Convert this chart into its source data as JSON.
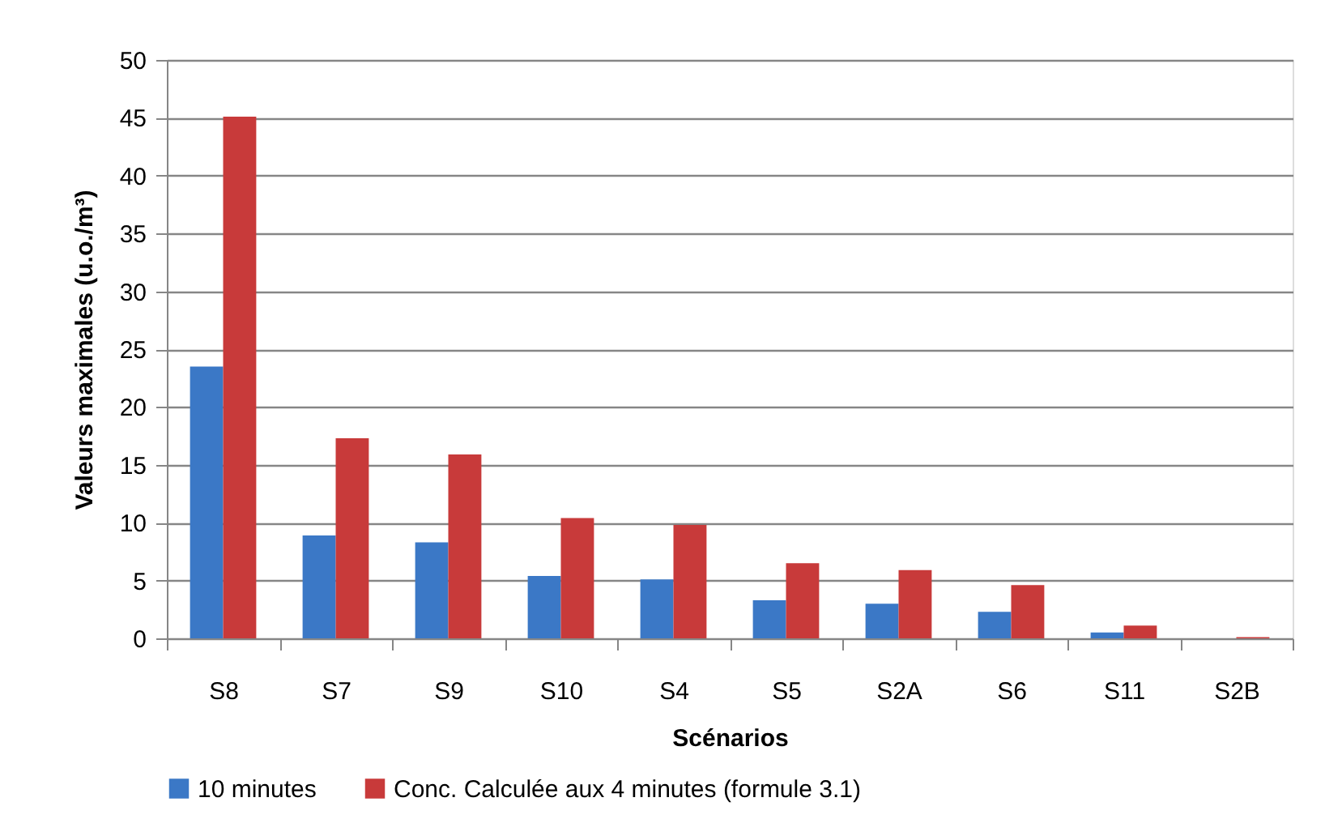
{
  "chart_data": {
    "type": "bar",
    "xlabel": "Scénarios",
    "ylabel": "Valeurs maximales (u.o./m³)",
    "categories": [
      "S8",
      "S7",
      "S9",
      "S10",
      "S4",
      "S5",
      "S2A",
      "S6",
      "S11",
      "S2B"
    ],
    "series": [
      {
        "name": "10 minutes",
        "color": "#3b78c6",
        "values": [
          23.5,
          8.9,
          8.3,
          5.4,
          5.1,
          3.3,
          3.0,
          2.3,
          0.5,
          0
        ]
      },
      {
        "name": "Conc. Calculée aux 4 minutes (formule 3.1)",
        "color": "#c83a3a",
        "values": [
          45.1,
          17.3,
          15.9,
          10.4,
          9.8,
          6.5,
          5.9,
          4.6,
          1.1,
          0.1
        ]
      }
    ],
    "ylim": [
      0,
      50
    ],
    "yticks": [
      0,
      5,
      10,
      15,
      20,
      25,
      30,
      35,
      40,
      45,
      50
    ],
    "grid": "y",
    "legend": "bottom"
  }
}
